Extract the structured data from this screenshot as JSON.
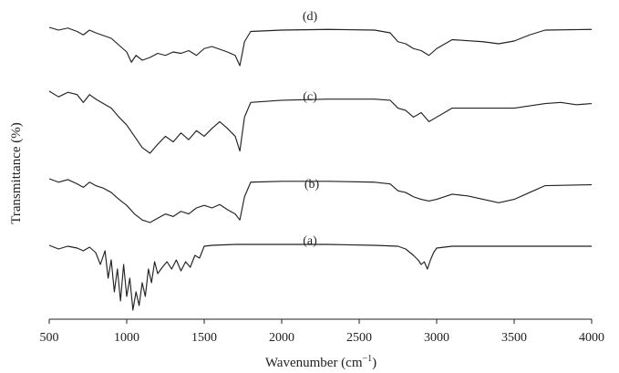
{
  "chart_data": {
    "type": "line",
    "xlabel": "Wavenumber (cm",
    "xlabel_sup": "−1",
    "xlabel_tail": ")",
    "ylabel": "Transmittance (%)",
    "x_ticks": [
      500,
      1000,
      1500,
      2000,
      2500,
      3000,
      3500,
      4000
    ],
    "xlim": [
      500,
      4000
    ],
    "grid": false,
    "stacked_offset": true,
    "series": [
      {
        "name": "(a)",
        "x": [
          500,
          560,
          620,
          680,
          720,
          760,
          800,
          830,
          860,
          880,
          900,
          920,
          940,
          960,
          980,
          1000,
          1020,
          1040,
          1060,
          1080,
          1100,
          1120,
          1140,
          1160,
          1180,
          1200,
          1230,
          1260,
          1290,
          1320,
          1350,
          1380,
          1410,
          1440,
          1470,
          1500,
          1550,
          1700,
          2000,
          2300,
          2600,
          2750,
          2800,
          2850,
          2880,
          2900,
          2920,
          2940,
          2960,
          2980,
          3000,
          3100,
          3500,
          4000
        ],
        "y": [
          96,
          92,
          95,
          93,
          90,
          94,
          88,
          75,
          90,
          60,
          80,
          45,
          70,
          35,
          75,
          40,
          60,
          25,
          45,
          30,
          55,
          40,
          70,
          55,
          78,
          65,
          72,
          78,
          70,
          80,
          68,
          78,
          72,
          85,
          82,
          95,
          96,
          97,
          97,
          97,
          96,
          95,
          92,
          85,
          80,
          75,
          78,
          70,
          80,
          88,
          93,
          95,
          95,
          95
        ]
      },
      {
        "name": "(b)",
        "x": [
          500,
          560,
          620,
          680,
          720,
          760,
          800,
          850,
          900,
          950,
          1000,
          1050,
          1100,
          1150,
          1200,
          1250,
          1300,
          1350,
          1400,
          1450,
          1500,
          1550,
          1600,
          1650,
          1700,
          1730,
          1760,
          1800,
          2000,
          2300,
          2600,
          2700,
          2750,
          2800,
          2850,
          2900,
          2950,
          3000,
          3100,
          3200,
          3300,
          3400,
          3500,
          3600,
          3700,
          4000
        ],
        "y": [
          96,
          92,
          95,
          90,
          86,
          92,
          88,
          85,
          80,
          72,
          65,
          55,
          48,
          45,
          50,
          55,
          52,
          58,
          55,
          62,
          65,
          62,
          66,
          60,
          55,
          48,
          75,
          92,
          93,
          93,
          92,
          90,
          82,
          80,
          75,
          72,
          70,
          72,
          78,
          76,
          72,
          68,
          72,
          80,
          88,
          89
        ]
      },
      {
        "name": "(c)",
        "x": [
          500,
          560,
          620,
          680,
          720,
          760,
          800,
          850,
          900,
          950,
          1000,
          1050,
          1100,
          1150,
          1200,
          1250,
          1300,
          1350,
          1400,
          1450,
          1500,
          1550,
          1600,
          1650,
          1700,
          1730,
          1760,
          1800,
          2000,
          2300,
          2600,
          2700,
          2750,
          2800,
          2850,
          2900,
          2950,
          3000,
          3100,
          3300,
          3500,
          3600,
          3700,
          3800,
          3900,
          4000
        ],
        "y": [
          95,
          90,
          94,
          92,
          85,
          92,
          88,
          84,
          80,
          72,
          65,
          55,
          45,
          40,
          48,
          55,
          50,
          58,
          52,
          60,
          55,
          62,
          68,
          62,
          55,
          42,
          72,
          85,
          87,
          88,
          88,
          87,
          80,
          78,
          72,
          76,
          68,
          72,
          80,
          80,
          80,
          82,
          84,
          85,
          83,
          84
        ]
      },
      {
        "name": "(d)",
        "x": [
          500,
          560,
          620,
          680,
          720,
          760,
          800,
          850,
          900,
          950,
          1000,
          1030,
          1060,
          1100,
          1150,
          1200,
          1250,
          1300,
          1350,
          1400,
          1450,
          1500,
          1550,
          1600,
          1650,
          1700,
          1730,
          1760,
          1800,
          2000,
          2300,
          2600,
          2700,
          2750,
          2800,
          2850,
          2900,
          2950,
          3000,
          3100,
          3300,
          3400,
          3500,
          3600,
          3700,
          4000
        ],
        "y": [
          96,
          92,
          95,
          90,
          85,
          92,
          88,
          84,
          80,
          70,
          60,
          45,
          55,
          48,
          52,
          58,
          55,
          60,
          58,
          62,
          55,
          65,
          68,
          64,
          60,
          55,
          40,
          75,
          90,
          92,
          93,
          92,
          88,
          75,
          72,
          65,
          62,
          55,
          65,
          78,
          75,
          72,
          76,
          85,
          92,
          93
        ]
      }
    ]
  }
}
